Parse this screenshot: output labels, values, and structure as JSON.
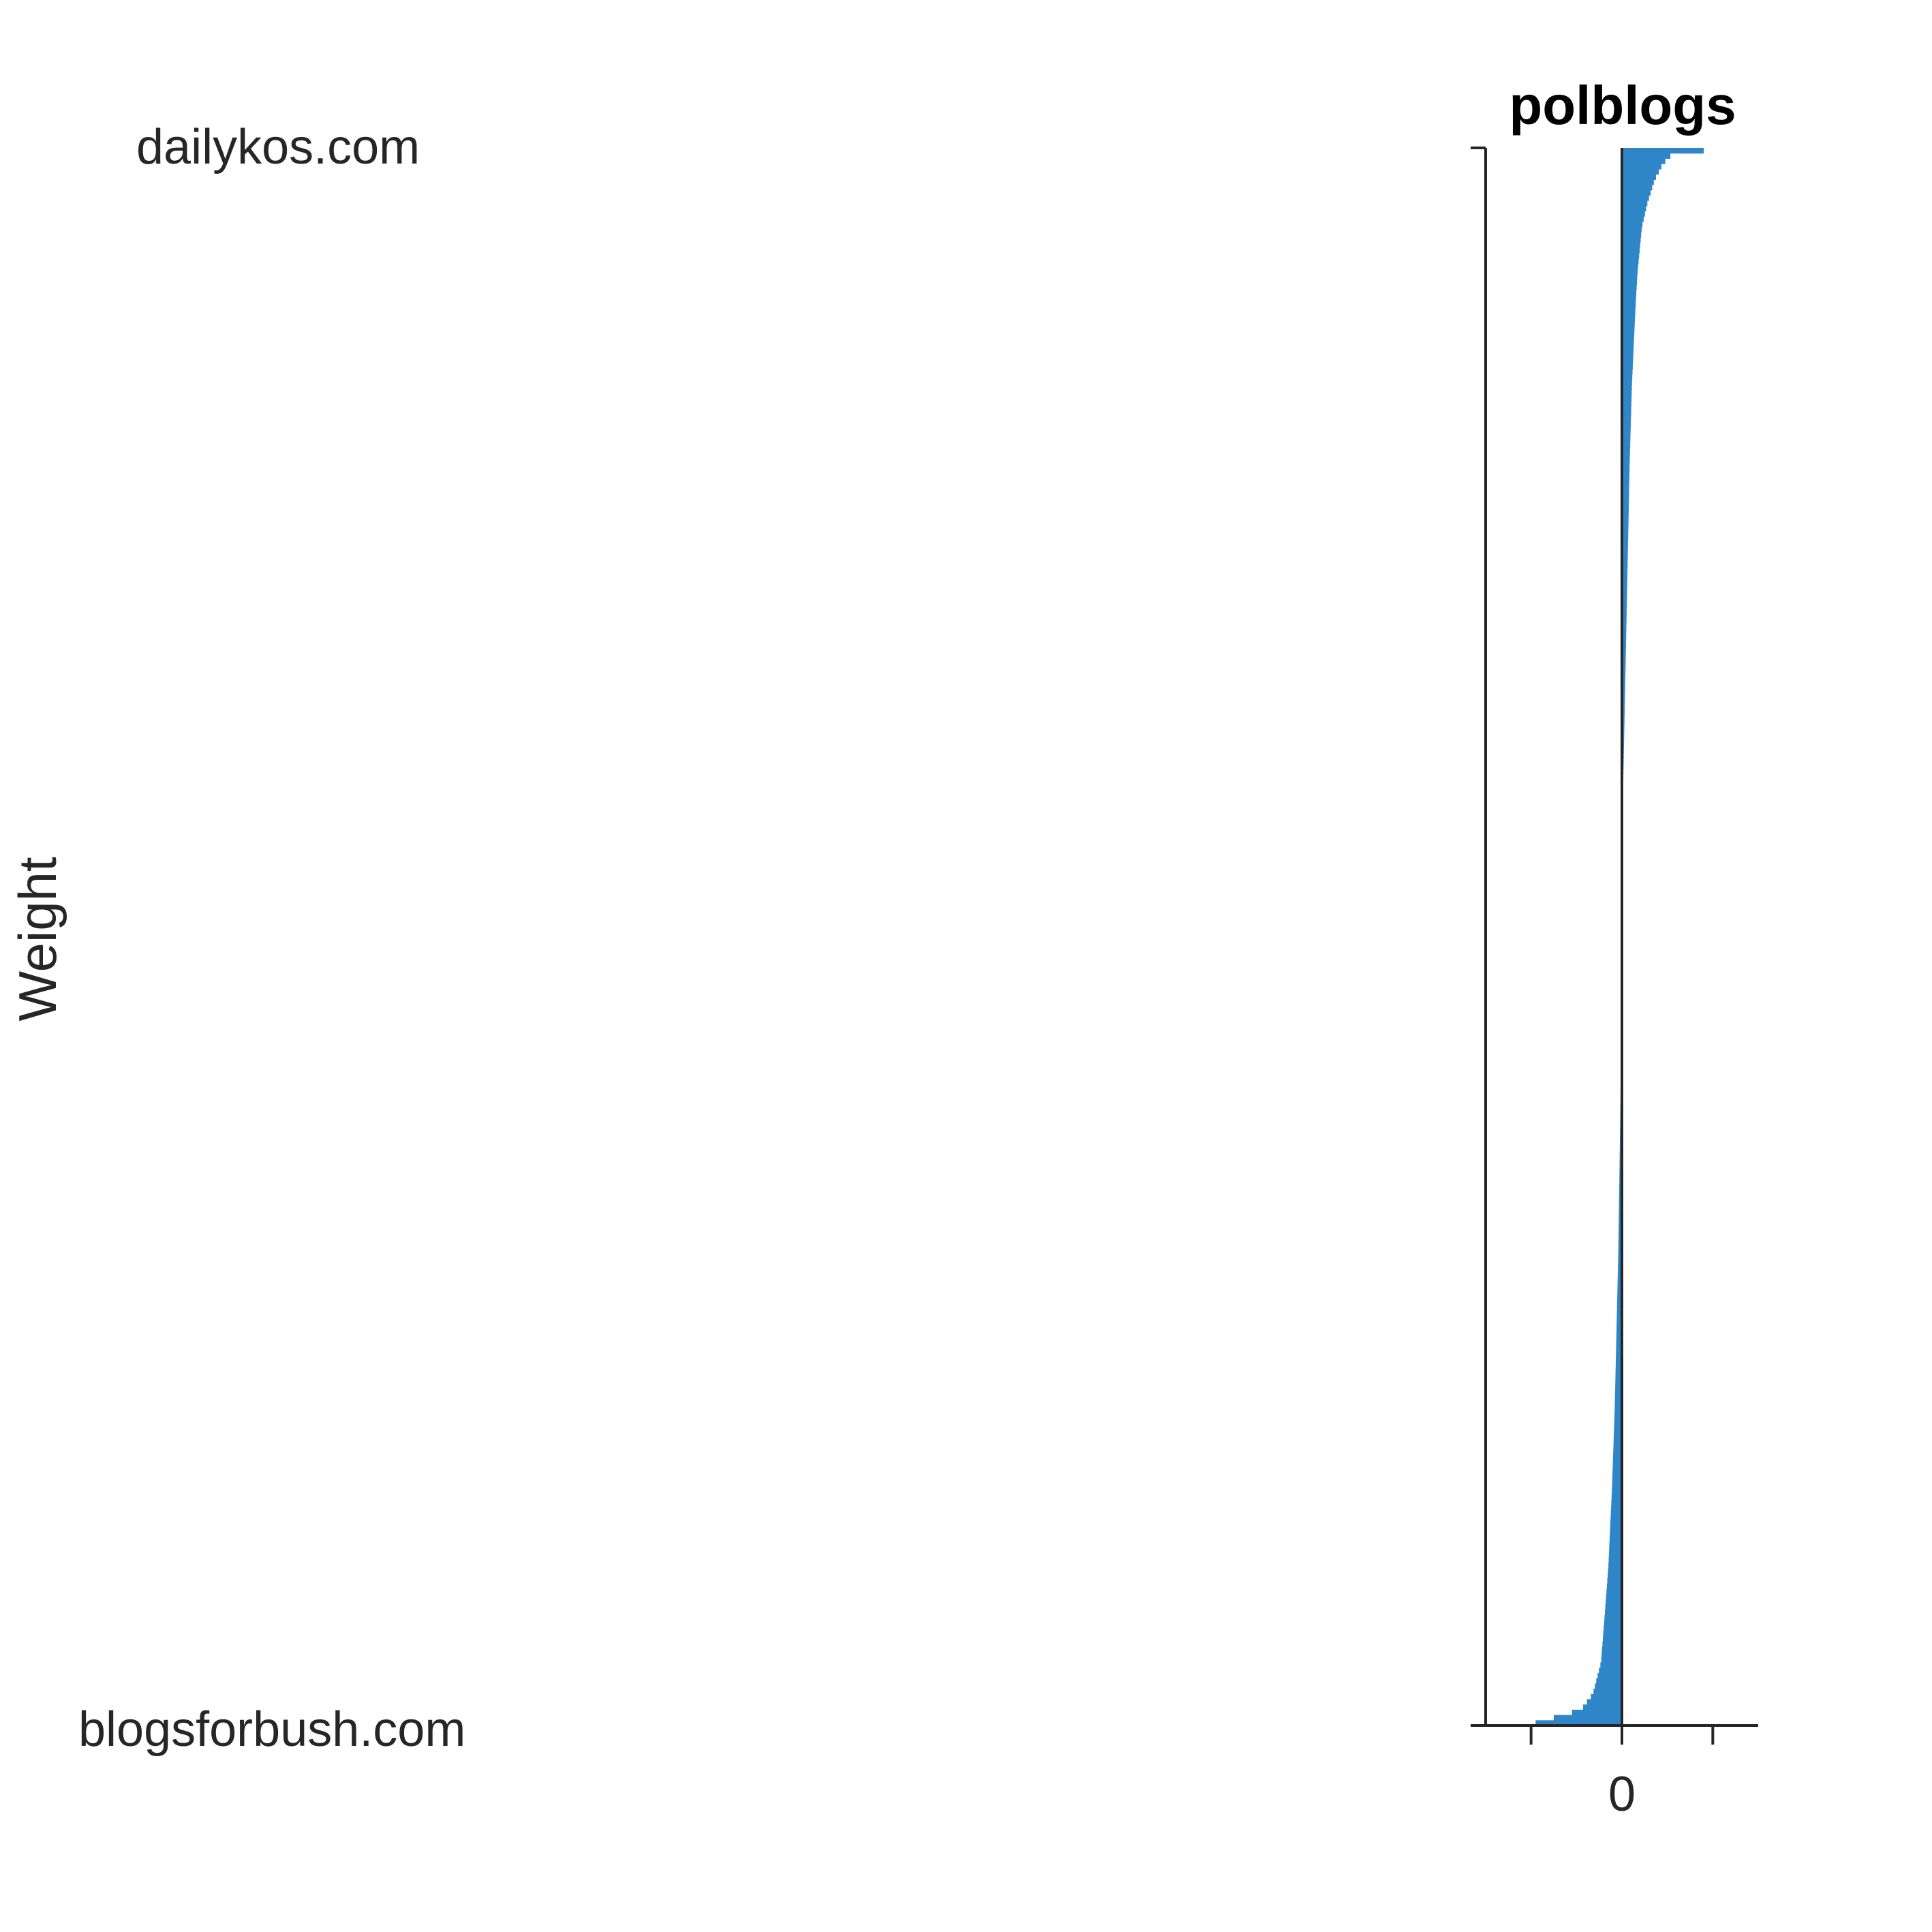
{
  "chart_data": {
    "type": "bar",
    "orientation": "horizontal",
    "title": "polblogs",
    "ylabel": "Weight",
    "xlabel": "",
    "top_label": "dailykos.com",
    "bottom_label": "blogsforbush.com",
    "x_ticks": [
      -1,
      0,
      1
    ],
    "x_tick_labels": [
      "",
      "0",
      ""
    ],
    "xlim": [
      -1.5,
      1.5
    ],
    "grid": false,
    "bar_color": "#2e86c8",
    "axis_color": "#262626",
    "profile": [
      [
        0.0,
        1.15
      ],
      [
        0.004,
        0.55
      ],
      [
        0.01,
        0.45
      ],
      [
        0.02,
        0.36
      ],
      [
        0.035,
        0.28
      ],
      [
        0.05,
        0.22
      ],
      [
        0.08,
        0.17
      ],
      [
        0.1,
        0.15
      ],
      [
        0.15,
        0.11
      ],
      [
        0.2,
        0.085
      ],
      [
        0.3,
        0.05
      ],
      [
        0.4,
        0.015
      ],
      [
        0.5,
        0.0
      ],
      [
        0.6,
        -0.015
      ],
      [
        0.7,
        -0.04
      ],
      [
        0.8,
        -0.08
      ],
      [
        0.85,
        -0.11
      ],
      [
        0.9,
        -0.15
      ],
      [
        0.93,
        -0.19
      ],
      [
        0.96,
        -0.23
      ],
      [
        0.98,
        -0.32
      ],
      [
        0.99,
        -0.45
      ],
      [
        1.0,
        -1.05
      ]
    ],
    "n_bars": 300
  }
}
